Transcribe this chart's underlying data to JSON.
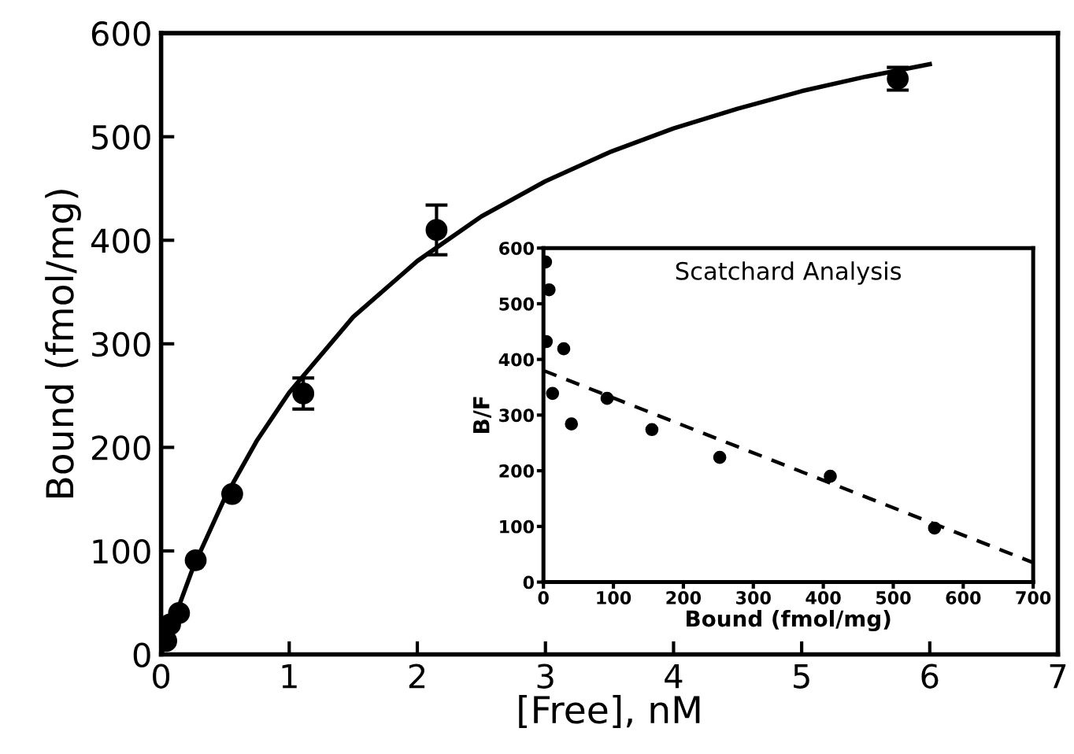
{
  "chart_data": [
    {
      "type": "scatter",
      "xlabel": "[Free], nM",
      "ylabel": "Bound (fmol/mg)",
      "xlim": [
        0,
        7
      ],
      "ylim": [
        0,
        600
      ],
      "xticks": [
        0,
        1,
        2,
        3,
        4,
        5,
        6,
        7
      ],
      "yticks": [
        0,
        100,
        200,
        300,
        400,
        500,
        600
      ],
      "grid": false,
      "series": [
        {
          "color": "#000000",
          "marker": "circle",
          "x": [
            0.04,
            0.07,
            0.14,
            0.27,
            0.555,
            1.11,
            2.15,
            5.75
          ],
          "values": [
            13,
            29,
            40,
            91,
            155,
            252,
            410,
            556
          ],
          "errors": [
            null,
            null,
            null,
            null,
            null,
            15,
            24,
            11
          ]
        },
        {
          "type": "line",
          "color": "#000000",
          "line_style": "solid",
          "x": [
            0,
            0.25,
            0.5,
            0.75,
            1,
            1.5,
            2,
            2.5,
            3,
            3.5,
            4,
            4.5,
            5,
            5.5,
            6
          ],
          "values": [
            0,
            84,
            152,
            207,
            253,
            326,
            380,
            423,
            457,
            485,
            508,
            527,
            544,
            558,
            570
          ]
        }
      ]
    },
    {
      "type": "scatter",
      "title": "Scatchard Analysis",
      "xlabel": "Bound (fmol/mg)",
      "ylabel": "B/F",
      "xlim": [
        0,
        700
      ],
      "ylim": [
        0,
        600
      ],
      "xticks": [
        0,
        100,
        200,
        300,
        400,
        500,
        600,
        700
      ],
      "yticks": [
        0,
        100,
        200,
        300,
        400,
        500,
        600
      ],
      "grid": false,
      "series": [
        {
          "color": "#000000",
          "marker": "circle",
          "x": [
            3,
            4,
            8,
            13,
            29,
            40,
            91,
            155,
            252,
            410,
            559
          ],
          "values": [
            575,
            432,
            525,
            339,
            419,
            284,
            330,
            274,
            224,
            190,
            97
          ]
        },
        {
          "type": "line",
          "color": "#000000",
          "line_style": "dashed",
          "x": [
            0,
            700
          ],
          "values": [
            380,
            35
          ]
        }
      ]
    }
  ]
}
